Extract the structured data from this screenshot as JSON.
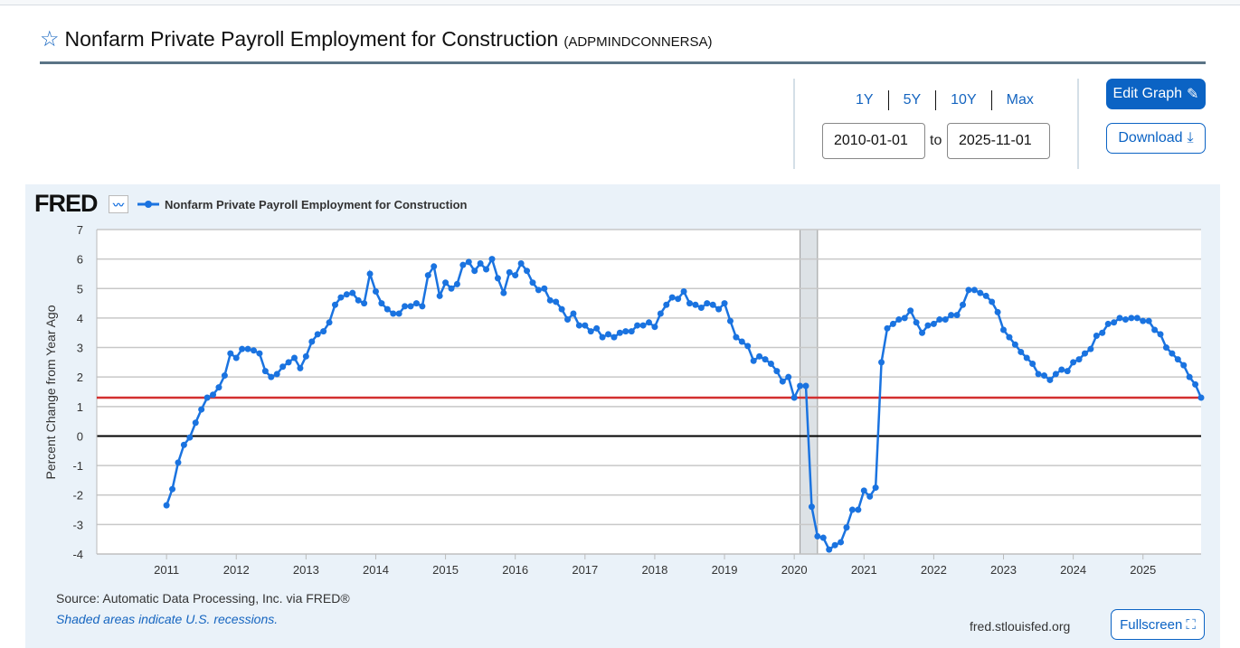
{
  "header": {
    "title": "Nonfarm Private Payroll Employment for Construction",
    "series_id": "(ADPMINDCONNERSA)"
  },
  "controls": {
    "ranges": [
      "1Y",
      "5Y",
      "10Y",
      "Max"
    ],
    "start_date": "2010-01-01",
    "end_date": "2025-11-01",
    "to_label": "to",
    "edit_label": "Edit Graph",
    "download_label": "Download",
    "fullscreen_label": "Fullscreen"
  },
  "footer": {
    "source": "Source: Automatic Data Processing, Inc. via FRED®",
    "recession_note": "Shaded areas indicate U.S. recessions.",
    "site": "fred.stlouisfed.org"
  },
  "logo": "FRED",
  "colors": {
    "series": "#1a73e0",
    "reference_line": "#d32f2f",
    "accent": "#0b63c4"
  },
  "chart_data": {
    "type": "line",
    "title": "Nonfarm Private Payroll Employment for Construction",
    "legend": [
      "Nonfarm Private Payroll Employment for Construction"
    ],
    "legend_placement": "top-left",
    "ylabel": "Percent Change from Year Ago",
    "xlabel": "",
    "ylim": [
      -4,
      7
    ],
    "xlim": [
      "2010-01",
      "2025-11"
    ],
    "yticks": [
      "7",
      "6",
      "5",
      "4",
      "3",
      "2",
      "1",
      "0",
      "-1",
      "-2",
      "-3",
      "-4"
    ],
    "xticks": [
      "2011",
      "2012",
      "2013",
      "2014",
      "2015",
      "2016",
      "2017",
      "2018",
      "2019",
      "2020",
      "2021",
      "2022",
      "2023",
      "2024",
      "2025"
    ],
    "grid": true,
    "start": "2011-01",
    "frequency": "monthly",
    "reference_line": 1.3,
    "recessions": [
      [
        "2020-02",
        "2020-04"
      ]
    ],
    "values": [
      -2.35,
      -1.8,
      -0.9,
      -0.3,
      -0.05,
      0.45,
      0.9,
      1.3,
      1.4,
      1.65,
      2.05,
      2.8,
      2.65,
      2.95,
      2.95,
      2.9,
      2.8,
      2.2,
      2.0,
      2.1,
      2.35,
      2.5,
      2.65,
      2.3,
      2.7,
      3.2,
      3.45,
      3.55,
      3.85,
      4.45,
      4.7,
      4.8,
      4.85,
      4.6,
      4.5,
      5.5,
      4.9,
      4.5,
      4.3,
      4.15,
      4.15,
      4.4,
      4.4,
      4.5,
      4.4,
      5.45,
      5.75,
      4.75,
      5.2,
      5.0,
      5.15,
      5.8,
      5.9,
      5.6,
      5.85,
      5.65,
      6.0,
      5.35,
      4.85,
      5.55,
      5.45,
      5.85,
      5.6,
      5.2,
      4.95,
      5.0,
      4.6,
      4.55,
      4.3,
      3.95,
      4.15,
      3.75,
      3.75,
      3.55,
      3.65,
      3.35,
      3.45,
      3.35,
      3.5,
      3.55,
      3.55,
      3.75,
      3.75,
      3.85,
      3.7,
      4.15,
      4.45,
      4.7,
      4.65,
      4.9,
      4.5,
      4.45,
      4.35,
      4.5,
      4.45,
      4.3,
      4.5,
      3.9,
      3.35,
      3.2,
      3.05,
      2.55,
      2.7,
      2.6,
      2.45,
      2.2,
      1.85,
      2.0,
      1.3,
      1.7,
      1.7,
      -2.4,
      -3.4,
      -3.45,
      -3.85,
      -3.7,
      -3.6,
      -3.1,
      -2.5,
      -2.5,
      -1.85,
      -2.05,
      -1.75,
      2.5,
      3.65,
      3.8,
      3.95,
      4.0,
      4.25,
      3.85,
      3.5,
      3.75,
      3.8,
      3.95,
      3.95,
      4.1,
      4.1,
      4.45,
      4.95,
      4.95,
      4.85,
      4.75,
      4.55,
      4.2,
      3.6,
      3.35,
      3.1,
      2.85,
      2.65,
      2.45,
      2.1,
      2.05,
      1.9,
      2.1,
      2.25,
      2.2,
      2.5,
      2.6,
      2.8,
      2.95,
      3.4,
      3.5,
      3.8,
      3.85,
      4.0,
      3.95,
      4.0,
      4.0,
      3.9,
      3.9,
      3.6,
      3.45,
      3.0,
      2.8,
      2.6,
      2.4,
      2.0,
      1.75,
      1.3
    ]
  }
}
